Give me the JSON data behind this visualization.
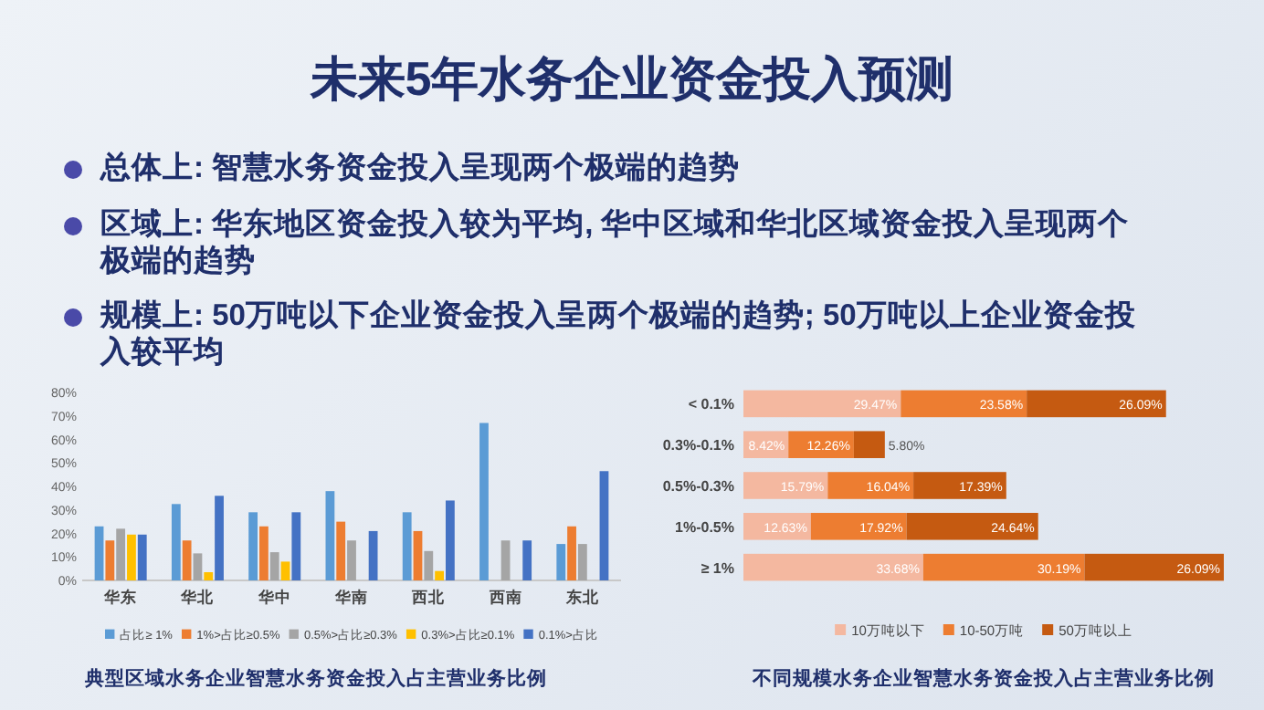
{
  "chart_data": [
    {
      "type": "other",
      "title": "未来5年水务企业资金投入预测",
      "annotations": [
        "总体上: 智慧水务资金投入呈现两个极端的趋势",
        "区域上: 华东地区资金投入较为平均, 华中区域和华北区域资金投入呈现两个极端的趋势",
        "规模上: 50万吨以下企业资金投入呈两个极端的趋势; 50万吨以上企业资金投入较平均"
      ]
    },
    {
      "type": "bar",
      "title": "典型区域水务企业智慧水务资金投入占主营业务比例",
      "categories": [
        "华东",
        "华北",
        "华中",
        "华南",
        "西北",
        "西南",
        "东北"
      ],
      "series": [
        {
          "name": "占比≥ 1%",
          "color": "#5b9bd5",
          "values": [
            23,
            32.5,
            29,
            38,
            29,
            67,
            15.5
          ]
        },
        {
          "name": "1%>占比≥0.5%",
          "color": "#ed7d31",
          "values": [
            17,
            17,
            23,
            25,
            21,
            null,
            23
          ]
        },
        {
          "name": "0.5%>占比≥0.3%",
          "color": "#a5a5a5",
          "values": [
            22,
            11.5,
            12,
            17,
            12.5,
            17,
            15.5
          ]
        },
        {
          "name": "0.3%>占比≥0.1%",
          "color": "#ffc000",
          "values": [
            19.5,
            3.5,
            8,
            null,
            4,
            null,
            null
          ]
        },
        {
          "name": "0.1%>占比",
          "color": "#4472c4",
          "values": [
            19.5,
            36,
            29,
            21,
            34,
            17,
            46.5
          ]
        }
      ],
      "ylim": [
        0,
        80
      ],
      "yticks": [
        {
          "value": 0,
          "label": "0%"
        },
        {
          "value": 10,
          "label": "10%"
        },
        {
          "value": 20,
          "label": "20%"
        },
        {
          "value": 30,
          "label": "30%"
        },
        {
          "value": 40,
          "label": "40%"
        },
        {
          "value": 50,
          "label": "50%"
        },
        {
          "value": 60,
          "label": "60%"
        },
        {
          "value": 70,
          "label": "70%"
        },
        {
          "value": 80,
          "label": "80%"
        }
      ],
      "legend": "bottom"
    },
    {
      "type": "bar",
      "title": "不同规模水务企业智慧水务资金投入占主营业务比例",
      "orientation": "horizontal",
      "stacked": true,
      "legend": "bottom",
      "categories": [
        "< 0.1%",
        "0.3%-0.1%",
        "0.5%-0.3%",
        "1%-0.5%",
        "≥ 1%"
      ],
      "series": [
        {
          "name": "10万吨以下",
          "color": "#f4b8a0",
          "values": [
            29.47,
            8.42,
            15.79,
            12.63,
            33.68
          ],
          "value_labels": [
            "29.47%",
            "8.42%",
            "15.79%",
            "12.63%",
            "33.68%"
          ]
        },
        {
          "name": "10-50万吨",
          "color": "#ed7d31",
          "values": [
            23.58,
            12.26,
            16.04,
            17.92,
            30.19
          ],
          "value_labels": [
            "23.58%",
            "12.26%",
            "16.04%",
            "17.92%",
            "30.19%"
          ]
        },
        {
          "name": "50万吨以上",
          "color": "#c55a11",
          "values": [
            26.09,
            5.8,
            17.39,
            24.64,
            26.09
          ],
          "value_labels": [
            "26.09%",
            "5.80%",
            "17.39%",
            "24.64%",
            "26.09%"
          ]
        }
      ]
    }
  ]
}
